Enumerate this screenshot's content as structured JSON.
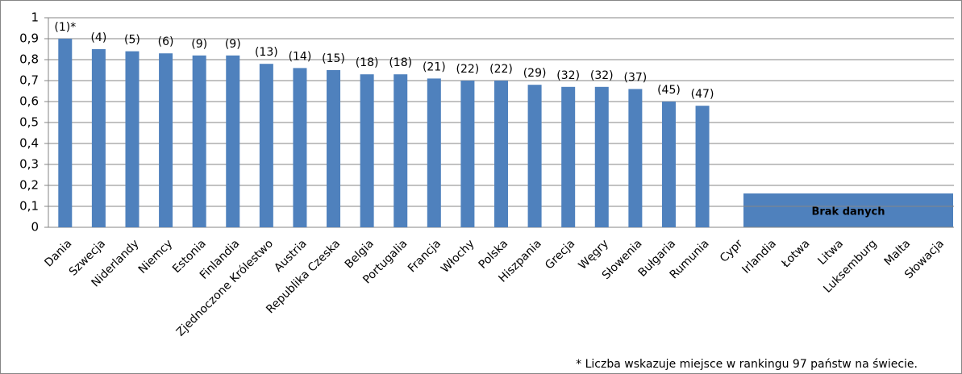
{
  "chart_data": {
    "type": "bar",
    "categories": [
      "Dania",
      "Szwecja",
      "Niderlandy",
      "Niemcy",
      "Estonia",
      "Finlandia",
      "Zjednoczone Królestwo",
      "Austria",
      "Republika Czeska",
      "Belgia",
      "Portugalia",
      "Francja",
      "Włochy",
      "Polska",
      "Hiszpania",
      "Grecja",
      "Węgry",
      "Słowenia",
      "Bułgaria",
      "Rumunia",
      "Cypr",
      "Irlandia",
      "Łotwa",
      "Litwa",
      "Luksemburg",
      "Malta",
      "Słowacja"
    ],
    "values": [
      0.9,
      0.85,
      0.84,
      0.83,
      0.82,
      0.82,
      0.78,
      0.76,
      0.75,
      0.73,
      0.73,
      0.71,
      0.7,
      0.7,
      0.68,
      0.67,
      0.67,
      0.66,
      0.6,
      0.58,
      null,
      null,
      null,
      null,
      null,
      null,
      null
    ],
    "rank_labels": [
      "(1)*",
      "(4)",
      "(5)",
      "(6)",
      "(9)",
      "(9)",
      "(13)",
      "(14)",
      "(15)",
      "(18)",
      "(18)",
      "(21)",
      "(22)",
      "(22)",
      "(29)",
      "(32)",
      "(32)",
      "(37)",
      "(45)",
      "(47)",
      null,
      null,
      null,
      null,
      null,
      null,
      null
    ],
    "color": "#4f81bd",
    "ylim": [
      0,
      1
    ],
    "yticks": [
      0,
      {
        "value": 0.1,
        "label": "0,1"
      },
      {
        "value": 0.2,
        "label": "0,2"
      },
      {
        "value": 0.3,
        "label": "0,3"
      },
      {
        "value": 0.4,
        "label": "0,4"
      },
      {
        "value": 0.5,
        "label": "0,5"
      },
      {
        "value": 0.6,
        "label": "0,6"
      },
      {
        "value": 0.7,
        "label": "0,7"
      },
      {
        "value": 0.8,
        "label": "0,8"
      },
      {
        "value": 0.9,
        "label": "0,9"
      },
      1
    ],
    "grid": true,
    "no_data_label": "Brak danych",
    "footnote": "* Liczba wskazuje miejsce w rankingu 97 państw na świecie."
  }
}
